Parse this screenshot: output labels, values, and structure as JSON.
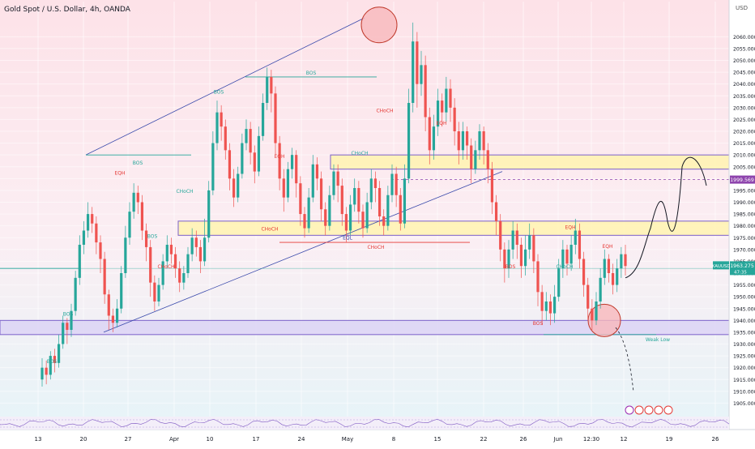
{
  "header": {
    "title": "Gold Spot / U.S. Dollar, 4h, OANDA"
  },
  "chart_data": {
    "type": "candlestick",
    "currency": "USD",
    "ylim": [
      1900,
      2068
    ],
    "y_ticks": [
      1905,
      1910,
      1915,
      1920,
      1925,
      1930,
      1935,
      1940,
      1945,
      1950,
      1955,
      1960,
      1965,
      1970,
      1975,
      1980,
      1985,
      1990,
      1995,
      2000,
      2005,
      2010,
      2015,
      2020,
      2025,
      2030,
      2035,
      2040,
      2045,
      2050,
      2055,
      2060
    ],
    "x_ticks": [
      "13",
      "20",
      "27",
      "Apr",
      "10",
      "17",
      "24",
      "May",
      "8",
      "15",
      "22",
      "26",
      "Jun",
      "12:30",
      "12",
      "19",
      "26"
    ],
    "symbol_badge": "XAUUSD",
    "last_price": "1963.275",
    "countdown": "47:35",
    "level_badge": "1999.569",
    "zones": [
      {
        "name": "upper-supply-zone",
        "from": 2004,
        "to": 2010
      },
      {
        "name": "middle-zone",
        "from": 1976,
        "to": 1982
      },
      {
        "name": "demand-zone",
        "from": 1934,
        "to": 1940
      }
    ],
    "dashed_level": 1999.569,
    "labels": {
      "bos": "BOS",
      "choch": "CHoCH",
      "eqh": "EQH",
      "eql": "EQL",
      "weak_low": "Weak Low"
    },
    "path_points": [
      [
        1963.3,
        1958
      ],
      [
        1963.3,
        1978
      ],
      [
        1963.3,
        1986
      ],
      [
        1963.3,
        1978
      ],
      [
        1963.3,
        2004
      ],
      [
        1963.3,
        1999.6
      ]
    ],
    "candles": [
      [
        1915,
        1920,
        1912,
        1924
      ],
      [
        1920,
        1917,
        1913,
        1923
      ],
      [
        1917,
        1925,
        1915,
        1927
      ],
      [
        1925,
        1922,
        1918,
        1928
      ],
      [
        1922,
        1930,
        1920,
        1934
      ],
      [
        1930,
        1939,
        1928,
        1942
      ],
      [
        1939,
        1936,
        1930,
        1941
      ],
      [
        1936,
        1944,
        1933,
        1947
      ],
      [
        1944,
        1958,
        1942,
        1961
      ],
      [
        1958,
        1972,
        1955,
        1976
      ],
      [
        1972,
        1978,
        1968,
        1982
      ],
      [
        1978,
        1985,
        1975,
        1990
      ],
      [
        1985,
        1981,
        1977,
        1988
      ],
      [
        1981,
        1973,
        1968,
        1984
      ],
      [
        1973,
        1966,
        1960,
        1976
      ],
      [
        1966,
        1951,
        1947,
        1969
      ],
      [
        1951,
        1942,
        1936,
        1953
      ],
      [
        1942,
        1939,
        1935,
        1945
      ],
      [
        1939,
        1945,
        1937,
        1949
      ],
      [
        1945,
        1960,
        1943,
        1963
      ],
      [
        1960,
        1975,
        1958,
        1980
      ],
      [
        1975,
        1986,
        1972,
        1990
      ],
      [
        1986,
        1994,
        1983,
        1998
      ],
      [
        1994,
        1990,
        1985,
        1997
      ],
      [
        1990,
        1978,
        1974,
        1993
      ],
      [
        1978,
        1971,
        1965,
        1981
      ],
      [
        1971,
        1956,
        1950,
        1974
      ],
      [
        1956,
        1948,
        1944,
        1959
      ],
      [
        1948,
        1955,
        1946,
        1958
      ],
      [
        1955,
        1965,
        1953,
        1968
      ],
      [
        1965,
        1972,
        1962,
        1976
      ],
      [
        1972,
        1968,
        1964,
        1975
      ],
      [
        1968,
        1962,
        1958,
        1971
      ],
      [
        1962,
        1956,
        1952,
        1965
      ],
      [
        1956,
        1960,
        1953,
        1963
      ],
      [
        1960,
        1968,
        1958,
        1971
      ],
      [
        1968,
        1975,
        1965,
        1979
      ],
      [
        1975,
        1971,
        1967,
        1978
      ],
      [
        1971,
        1965,
        1960,
        1974
      ],
      [
        1965,
        1975,
        1963,
        1983
      ],
      [
        1975,
        1995,
        1973,
        1999
      ],
      [
        1995,
        2015,
        1993,
        2020
      ],
      [
        2015,
        2028,
        2012,
        2033
      ],
      [
        2028,
        2022,
        2016,
        2031
      ],
      [
        2022,
        2012,
        2008,
        2025
      ],
      [
        2012,
        2000,
        1995,
        2015
      ],
      [
        2000,
        1992,
        1988,
        2004
      ],
      [
        1992,
        2002,
        1990,
        2005
      ],
      [
        2002,
        2015,
        2000,
        2019
      ],
      [
        2015,
        2021,
        2012,
        2025
      ],
      [
        2021,
        2011,
        2006,
        2024
      ],
      [
        2011,
        2003,
        1998,
        2014
      ],
      [
        2003,
        2018,
        2001,
        2022
      ],
      [
        2018,
        2032,
        2016,
        2036
      ],
      [
        2032,
        2043,
        2029,
        2047
      ],
      [
        2043,
        2036,
        2028,
        2046
      ],
      [
        2036,
        2015,
        2010,
        2039
      ],
      [
        2015,
        2000,
        1995,
        2018
      ],
      [
        2000,
        1992,
        1986,
        2004
      ],
      [
        1992,
        2004,
        1990,
        2007
      ],
      [
        2004,
        2010,
        2000,
        2013
      ],
      [
        2010,
        1998,
        1992,
        2012
      ],
      [
        1998,
        1985,
        1980,
        2001
      ],
      [
        1985,
        1979,
        1975,
        1988
      ],
      [
        1979,
        1992,
        1977,
        1996
      ],
      [
        1992,
        2006,
        1990,
        2010
      ],
      [
        2006,
        2000,
        1995,
        2009
      ],
      [
        2000,
        1987,
        1982,
        2003
      ],
      [
        1987,
        1980,
        1976,
        1990
      ],
      [
        1980,
        1993,
        1978,
        1997
      ],
      [
        1993,
        2003,
        1991,
        2006
      ],
      [
        2003,
        1997,
        1990,
        2006
      ],
      [
        1997,
        1985,
        1980,
        2000
      ],
      [
        1985,
        1978,
        1973,
        1988
      ],
      [
        1978,
        1989,
        1976,
        1993
      ],
      [
        1989,
        1996,
        1986,
        2000
      ],
      [
        1996,
        1986,
        1981,
        1999
      ],
      [
        1986,
        1979,
        1975,
        1989
      ],
      [
        1979,
        1990,
        1977,
        1994
      ],
      [
        1990,
        2000,
        1987,
        2004
      ],
      [
        2000,
        1996,
        1990,
        2003
      ],
      [
        1996,
        1984,
        1980,
        1999
      ],
      [
        1984,
        1980,
        1976,
        1987
      ],
      [
        1980,
        1993,
        1978,
        1997
      ],
      [
        1993,
        2002,
        1990,
        2006
      ],
      [
        2002,
        1993,
        1988,
        2005
      ],
      [
        1993,
        1981,
        1978,
        1996
      ],
      [
        1981,
        2000,
        1979,
        2006
      ],
      [
        2000,
        2032,
        1998,
        2038
      ],
      [
        2032,
        2058,
        2028,
        2066
      ],
      [
        2058,
        2040,
        2030,
        2062
      ],
      [
        2040,
        2048,
        2035,
        2054
      ],
      [
        2048,
        2026,
        2020,
        2052
      ],
      [
        2026,
        2012,
        2006,
        2030
      ],
      [
        2012,
        2022,
        2008,
        2027
      ],
      [
        2022,
        2033,
        2018,
        2038
      ],
      [
        2033,
        2028,
        2022,
        2036
      ],
      [
        2028,
        2038,
        2024,
        2043
      ],
      [
        2038,
        2030,
        2024,
        2042
      ],
      [
        2030,
        2020,
        2014,
        2034
      ],
      [
        2020,
        2012,
        2006,
        2024
      ],
      [
        2012,
        2020,
        2008,
        2024
      ],
      [
        2020,
        2014,
        2008,
        2022
      ],
      [
        2014,
        2004,
        1998,
        2017
      ],
      [
        2004,
        2012,
        2002,
        2016
      ],
      [
        2012,
        2020,
        2008,
        2023
      ],
      [
        2020,
        2012,
        2006,
        2022
      ],
      [
        2012,
        2004,
        1998,
        2015
      ],
      [
        2004,
        1990,
        1985,
        2007
      ],
      [
        1990,
        1982,
        1976,
        1993
      ],
      [
        1982,
        1970,
        1965,
        1985
      ],
      [
        1970,
        1962,
        1956,
        1973
      ],
      [
        1962,
        1970,
        1958,
        1974
      ],
      [
        1970,
        1978,
        1966,
        1982
      ],
      [
        1978,
        1972,
        1966,
        1981
      ],
      [
        1972,
        1963,
        1958,
        1975
      ],
      [
        1963,
        1970,
        1959,
        1976
      ],
      [
        1970,
        1976,
        1966,
        1981
      ],
      [
        1976,
        1965,
        1960,
        1979
      ],
      [
        1965,
        1952,
        1946,
        1968
      ],
      [
        1952,
        1944,
        1938,
        1955
      ],
      [
        1944,
        1948,
        1940,
        1952
      ],
      [
        1948,
        1943,
        1938,
        1951
      ],
      [
        1943,
        1950,
        1939,
        1955
      ],
      [
        1950,
        1962,
        1948,
        1966
      ],
      [
        1962,
        1970,
        1958,
        1974
      ],
      [
        1970,
        1964,
        1959,
        1972
      ],
      [
        1964,
        1972,
        1961,
        1976
      ],
      [
        1972,
        1978,
        1968,
        1983
      ],
      [
        1978,
        1966,
        1962,
        1981
      ],
      [
        1966,
        1955,
        1950,
        1969
      ],
      [
        1955,
        1945,
        1940,
        1958
      ],
      [
        1945,
        1940,
        1936,
        1949
      ],
      [
        1940,
        1948,
        1938,
        1952
      ],
      [
        1948,
        1958,
        1945,
        1962
      ],
      [
        1958,
        1966,
        1955,
        1970
      ],
      [
        1966,
        1960,
        1956,
        1968
      ],
      [
        1960,
        1955,
        1951,
        1964
      ],
      [
        1955,
        1962,
        1952,
        1966
      ],
      [
        1962,
        1968,
        1958,
        1971
      ],
      [
        1968,
        1963,
        1959,
        1972
      ]
    ]
  }
}
